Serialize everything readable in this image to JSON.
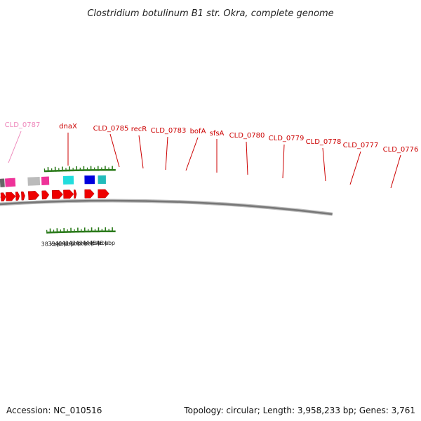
{
  "title": "Clostridium botulinum B1 str. Okra, complete genome",
  "footer": {
    "accession": "Accession: NC_010516",
    "topology": "Topology: circular; Length: 3,958,233 bp; Genes: 3,761"
  },
  "colors": {
    "label_red": "#cc0000",
    "label_pink": "#ee88bb",
    "tick_green": "#2a7a1a",
    "backbone": "#777777"
  },
  "kbp_labels": [
    "38 kbp",
    "39 kbp",
    "40 kbp",
    "41 kbp",
    "42 kbp",
    "43 kbp",
    "44 kbp",
    "45 kbp",
    "46 kbp"
  ],
  "gene_labels": [
    {
      "text": "CLD_0787",
      "faded": true
    },
    {
      "text": "dnaX"
    },
    {
      "text": "CLD_0785"
    },
    {
      "text": "recR"
    },
    {
      "text": "CLD_0783"
    },
    {
      "text": "bofA"
    },
    {
      "text": "sfsA"
    },
    {
      "text": "CLD_0780"
    },
    {
      "text": "CLD_0779"
    },
    {
      "text": "CLD_0778"
    },
    {
      "text": "CLD_0777"
    },
    {
      "text": "CLD_0776"
    }
  ]
}
